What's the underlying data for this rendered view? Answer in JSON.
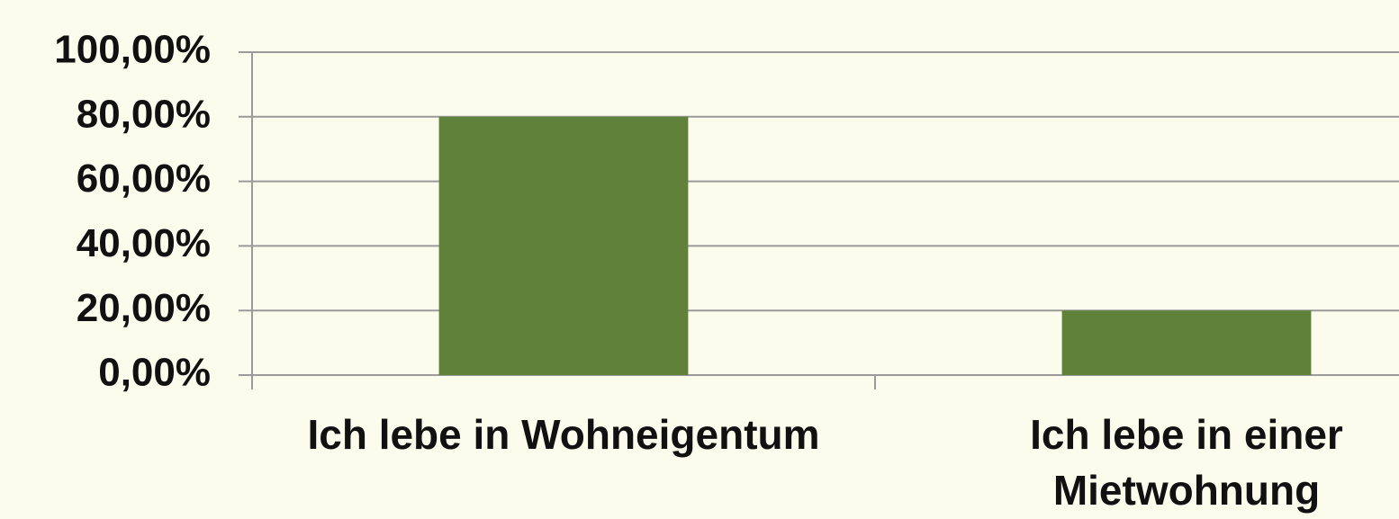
{
  "chart_data": {
    "type": "bar",
    "categories": [
      "Ich lebe in Wohneigentum",
      "Ich lebe in einer Mietwohnung"
    ],
    "values": [
      80,
      20
    ],
    "color": "#5f8139",
    "ylim": [
      0,
      100
    ],
    "yticks": [
      {
        "value": 0,
        "label": "0,00%"
      },
      {
        "value": 20,
        "label": "20,00%"
      },
      {
        "value": 40,
        "label": "40,00%"
      },
      {
        "value": 60,
        "label": "60,00%"
      },
      {
        "value": 80,
        "label": "80,00%"
      },
      {
        "value": 100,
        "label": "100,00%"
      }
    ],
    "grid": true
  }
}
